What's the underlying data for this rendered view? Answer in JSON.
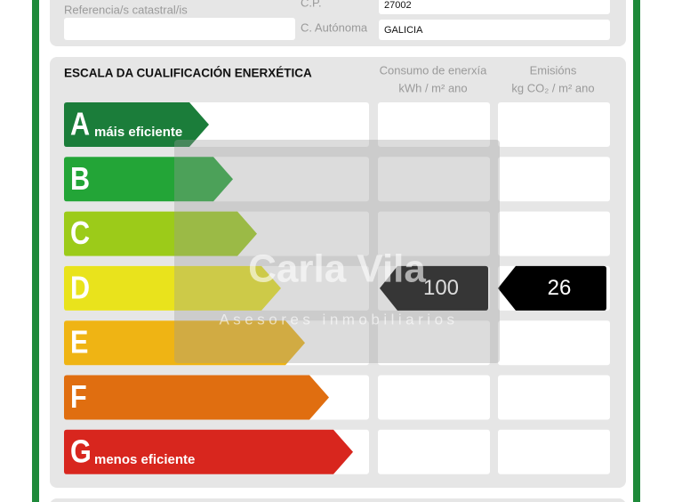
{
  "header": {
    "cadastral_label": "Referencia/s catastral/is",
    "postcode_label": "C.P.",
    "postcode": "27002",
    "region_label": "C. Autónoma",
    "region": "GALICIA"
  },
  "scale": {
    "title": "ESCALA DA CUALIFICACIÓN ENERXÉTICA",
    "consumption_title": "Consumo de enerxía",
    "consumption_unit": "kWh / m² ano",
    "emissions_title": "Emisións",
    "emissions_unit": "kg CO₂ / m² ano",
    "classes": [
      {
        "letter": "A",
        "note": "máis eficiente",
        "color": "#1b7d3a"
      },
      {
        "letter": "B",
        "color": "#23a537"
      },
      {
        "letter": "C",
        "color": "#9ccb19"
      },
      {
        "letter": "D",
        "color": "#e9e31c"
      },
      {
        "letter": "E",
        "color": "#efb414"
      },
      {
        "letter": "F",
        "color": "#e06e10"
      },
      {
        "letter": "G",
        "note": "menos eficiente",
        "color": "#d8261e"
      }
    ],
    "consumption": {
      "rating": "D",
      "value": "100"
    },
    "emissions": {
      "rating": "D",
      "value": "26"
    }
  },
  "watermark": {
    "name": "Carla Vila",
    "tagline": "Asesores inmobiliarios"
  }
}
